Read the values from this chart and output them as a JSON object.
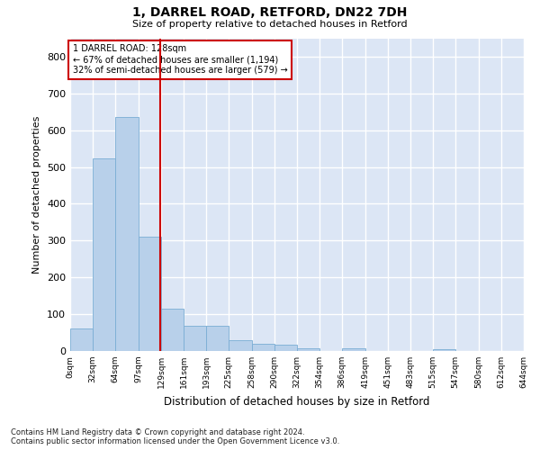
{
  "title1": "1, DARREL ROAD, RETFORD, DN22 7DH",
  "title2": "Size of property relative to detached houses in Retford",
  "xlabel": "Distribution of detached houses by size in Retford",
  "ylabel": "Number of detached properties",
  "footnote": "Contains HM Land Registry data © Crown copyright and database right 2024.\nContains public sector information licensed under the Open Government Licence v3.0.",
  "property_size": 128,
  "annotation_line1": "1 DARREL ROAD: 128sqm",
  "annotation_line2": "← 67% of detached houses are smaller (1,194)",
  "annotation_line3": "32% of semi-detached houses are larger (579) →",
  "bar_color": "#b8d0ea",
  "bar_edge_color": "#7aadd4",
  "vline_color": "#cc0000",
  "annotation_box_edge_color": "#cc0000",
  "bg_color": "#dce6f5",
  "grid_color": "#ffffff",
  "bin_edges": [
    0,
    32,
    64,
    97,
    129,
    161,
    193,
    225,
    258,
    290,
    322,
    354,
    386,
    419,
    451,
    483,
    515,
    547,
    580,
    612,
    644
  ],
  "bin_labels": [
    "0sqm",
    "32sqm",
    "64sqm",
    "97sqm",
    "129sqm",
    "161sqm",
    "193sqm",
    "225sqm",
    "258sqm",
    "290sqm",
    "322sqm",
    "354sqm",
    "386sqm",
    "419sqm",
    "451sqm",
    "483sqm",
    "515sqm",
    "547sqm",
    "580sqm",
    "612sqm",
    "644sqm"
  ],
  "counts": [
    62,
    524,
    635,
    311,
    116,
    68,
    68,
    30,
    20,
    18,
    8,
    0,
    8,
    0,
    0,
    0,
    5,
    0,
    0,
    0
  ],
  "ylim": [
    0,
    850
  ],
  "yticks": [
    0,
    100,
    200,
    300,
    400,
    500,
    600,
    700,
    800
  ]
}
